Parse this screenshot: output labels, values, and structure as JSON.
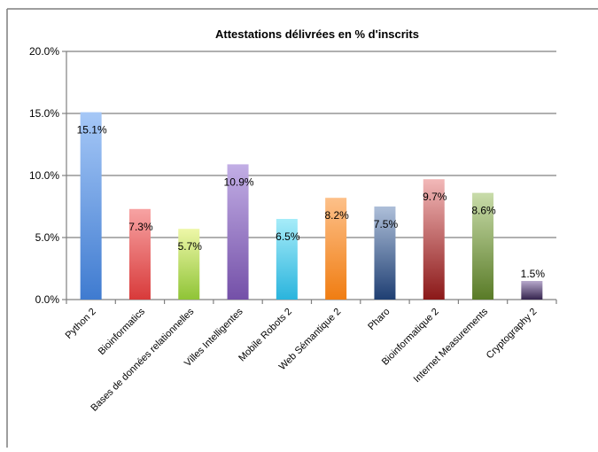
{
  "chart_data": {
    "type": "bar",
    "title": "Attestations délivrées en % d'inscrits",
    "xlabel": "",
    "ylabel": "",
    "ylim": [
      0,
      20
    ],
    "yticks": [
      0,
      5,
      10,
      15,
      20
    ],
    "ytick_labels": [
      "0.0%",
      "5.0%",
      "10.0%",
      "15.0%",
      "20.0%"
    ],
    "grid": true,
    "legend": "none",
    "categories": [
      "Python 2",
      "Bioinformatics",
      "Bases de données relationnelles",
      "Villes Intelligentes",
      "Mobile Robots 2",
      "Web Sémantique 2",
      "Pharo",
      "Bioinformatique 2",
      "Internet Measurements",
      "Cryptography 2"
    ],
    "values": [
      15.1,
      7.3,
      5.7,
      10.9,
      6.5,
      8.2,
      7.5,
      9.7,
      8.6,
      1.5
    ],
    "data_labels": [
      "15.1%",
      "7.3%",
      "5.7%",
      "10.9%",
      "6.5%",
      "8.2%",
      "7.5%",
      "9.7%",
      "8.6%",
      "1.5%"
    ],
    "colors": [
      [
        "#a6c8f7",
        "#3f7bd0"
      ],
      [
        "#f7a3a3",
        "#d83a3a"
      ],
      [
        "#eef7a8",
        "#8fc436"
      ],
      [
        "#c2aee5",
        "#7450a8"
      ],
      [
        "#a6ecf9",
        "#2ab4dd"
      ],
      [
        "#fdc089",
        "#f07d12"
      ],
      [
        "#aebfd9",
        "#1f3f73"
      ],
      [
        "#f2b8b8",
        "#8b1818"
      ],
      [
        "#c9dcaa",
        "#597b27"
      ],
      [
        "#b7a9cc",
        "#35244e"
      ]
    ]
  }
}
